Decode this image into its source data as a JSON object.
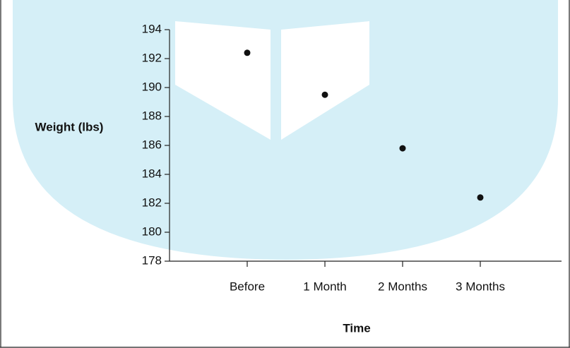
{
  "chart_data": {
    "type": "scatter",
    "title": null,
    "x_label": "Time",
    "y_label": "Weight (lbs)",
    "categories": [
      "Before",
      "1 Month",
      "2 Months",
      "3 Months"
    ],
    "values": [
      192.4,
      189.5,
      185.8,
      182.4
    ],
    "color": "#111111",
    "ylim": [
      178,
      194
    ],
    "yticks": [
      178,
      180,
      182,
      184,
      186,
      188,
      190,
      192,
      194
    ],
    "grid": false
  }
}
